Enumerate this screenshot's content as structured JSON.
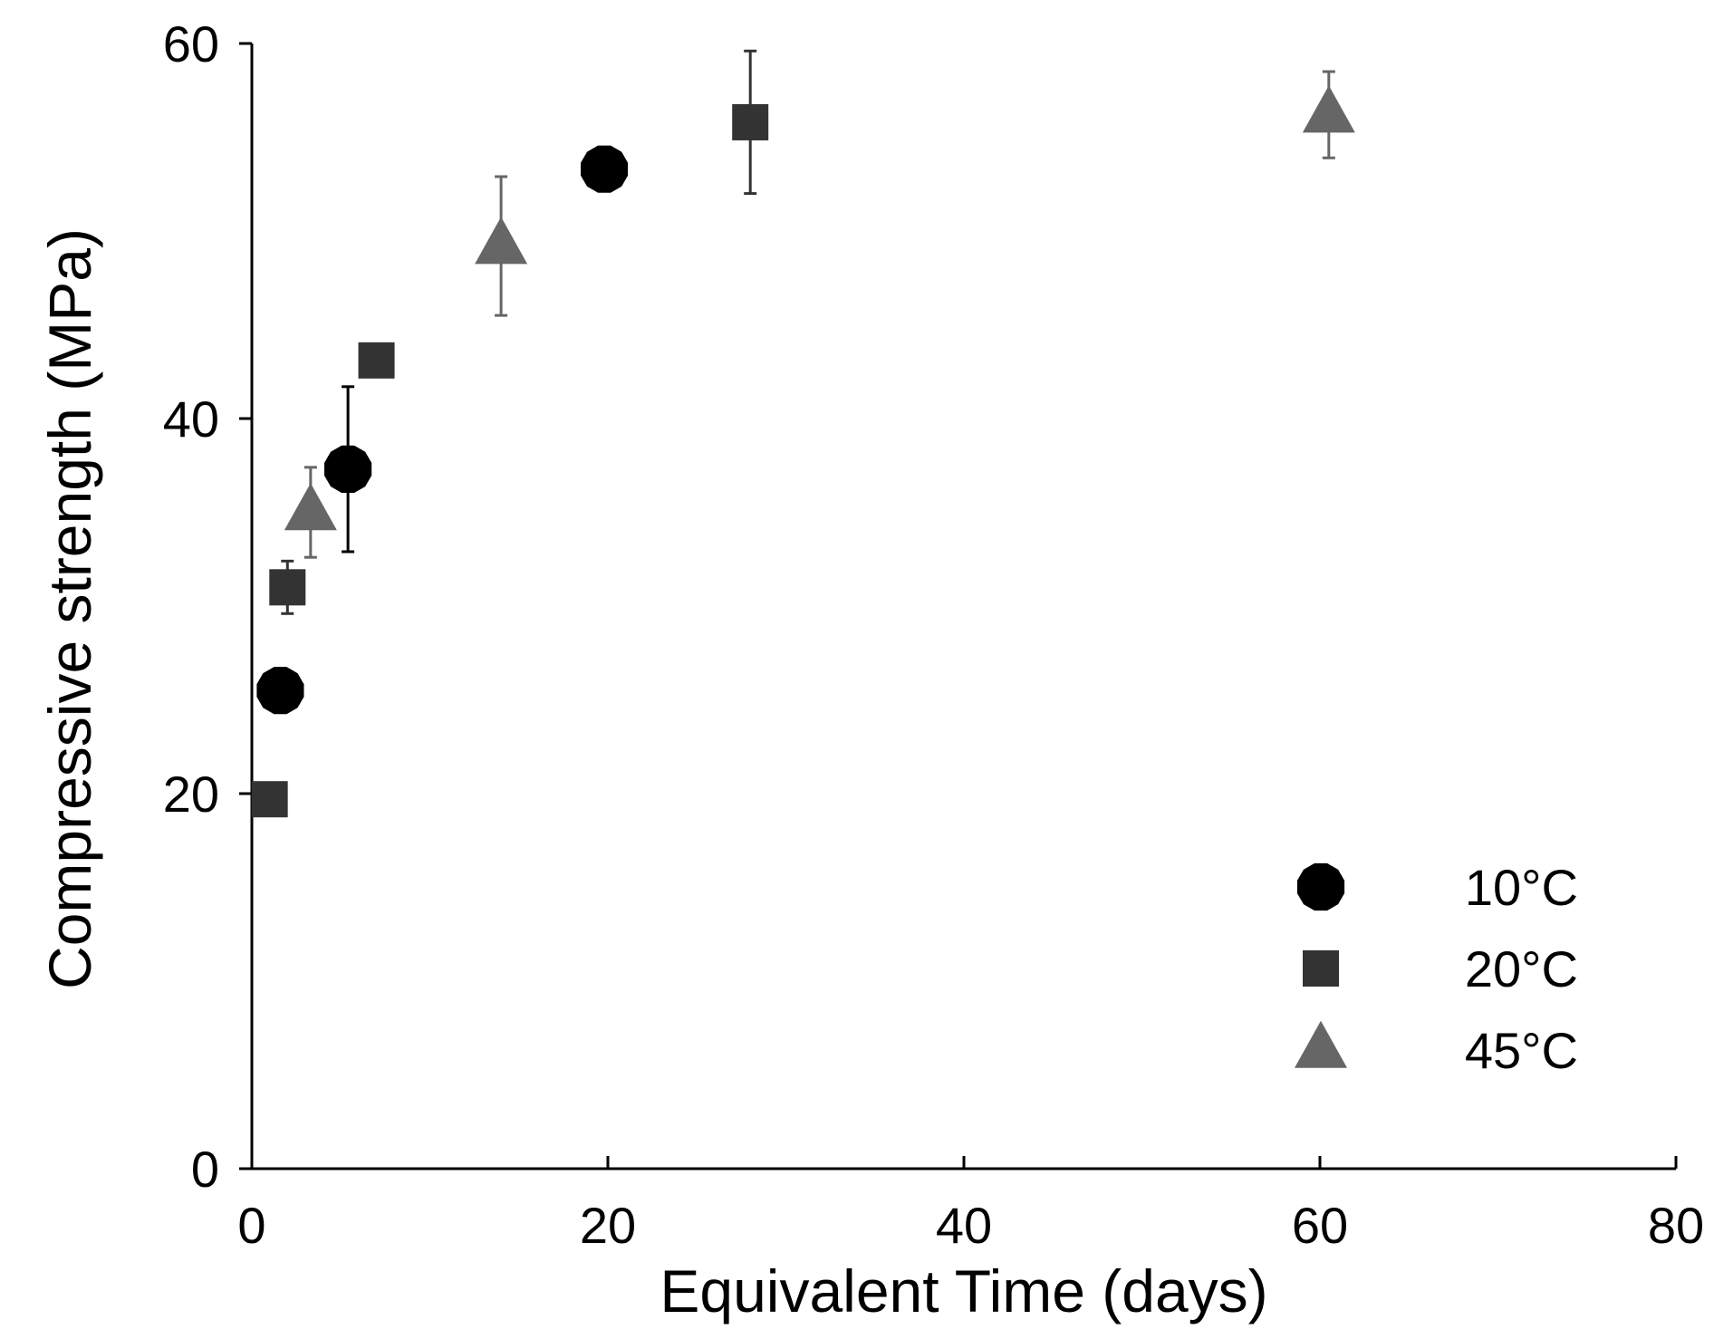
{
  "chart_data": {
    "type": "scatter",
    "xlabel": "Equivalent Time (days)",
    "ylabel": "Compressive strength (MPa)",
    "xlim": [
      0,
      80
    ],
    "ylim": [
      0,
      60
    ],
    "xticks": [
      0,
      20,
      40,
      60,
      80
    ],
    "yticks": [
      0,
      20,
      40,
      60
    ],
    "xtick_labels": [
      "0",
      "20",
      "40",
      "60",
      "80"
    ],
    "ytick_labels": [
      "0",
      "20",
      "40",
      "60"
    ],
    "legend_position": "bottom-right",
    "series": [
      {
        "name": "10°C",
        "marker": "circle",
        "color": "#000000",
        "points": [
          {
            "x": 1.6,
            "y": 25.5,
            "err": 0
          },
          {
            "x": 5.4,
            "y": 37.3,
            "err": 4.4
          },
          {
            "x": 19.8,
            "y": 53.3,
            "err": 0
          }
        ]
      },
      {
        "name": "20°C",
        "marker": "square",
        "color": "#333333",
        "points": [
          {
            "x": 1.0,
            "y": 19.7,
            "err": 0.6
          },
          {
            "x": 2.0,
            "y": 31.0,
            "err": 1.4
          },
          {
            "x": 7.0,
            "y": 43.1,
            "err": 0
          },
          {
            "x": 28.0,
            "y": 55.8,
            "err": 3.8
          }
        ]
      },
      {
        "name": "45°C",
        "marker": "triangle",
        "color": "#666666",
        "points": [
          {
            "x": 3.3,
            "y": 35.0,
            "err": 2.4
          },
          {
            "x": 14.0,
            "y": 49.2,
            "err": 3.7
          },
          {
            "x": 60.5,
            "y": 56.2,
            "err": 2.3
          }
        ]
      }
    ]
  }
}
